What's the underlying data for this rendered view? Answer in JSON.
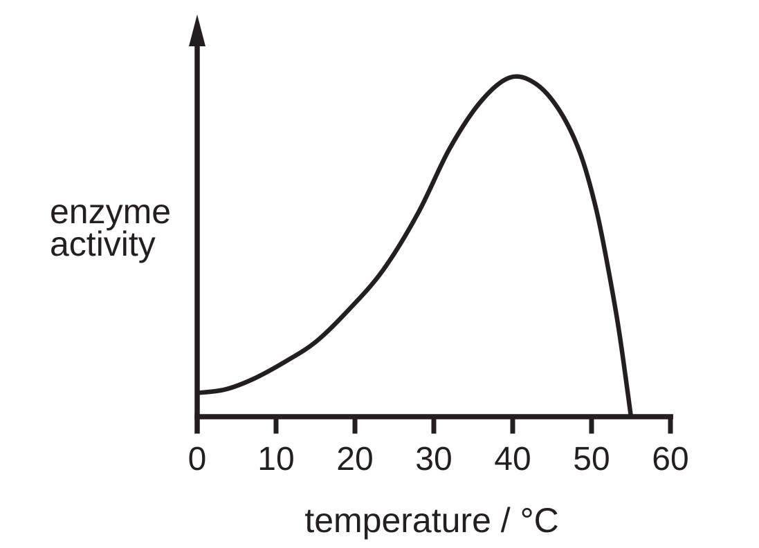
{
  "colors": {
    "ink": "#231f20",
    "background": "#ffffff"
  },
  "chart_data": {
    "type": "line",
    "title": "",
    "xlabel": "temperature / °C",
    "ylabel": "enzyme activity",
    "ylabel_lines": [
      "enzyme",
      "activity"
    ],
    "x_ticks": [
      0,
      10,
      20,
      30,
      40,
      50,
      60
    ],
    "xlim": [
      0,
      60
    ],
    "ylim": [
      0,
      1.05
    ],
    "y_axis_scale": "unlabeled relative activity, arrow pointing up",
    "grid": false,
    "legend": "none",
    "line_color": "#231f20",
    "peak": {
      "temperature_c": 39.5,
      "relative_activity": 1.0
    },
    "activity_reaches_zero_at_c": 55,
    "series": [
      {
        "name": "enzyme activity",
        "x": [
          0,
          3.5,
          7,
          11,
          15,
          19,
          23.5,
          28,
          32,
          36,
          39.7,
          43,
          46,
          48.5,
          50.5,
          52,
          53.5,
          55
        ],
        "y": [
          0.07,
          0.08,
          0.11,
          0.16,
          0.22,
          0.31,
          0.43,
          0.6,
          0.79,
          0.93,
          1.0,
          0.98,
          0.9,
          0.78,
          0.62,
          0.45,
          0.25,
          0.0
        ]
      }
    ]
  }
}
